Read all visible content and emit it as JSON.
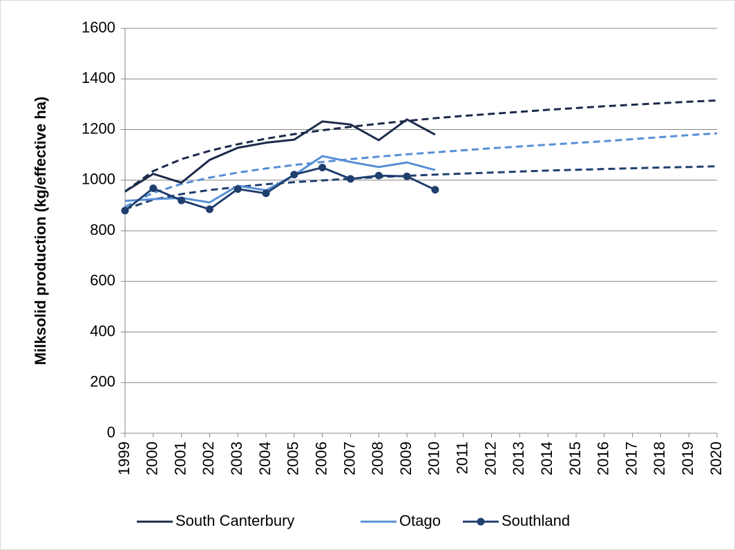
{
  "chart_data": {
    "type": "line",
    "y_label": "Milksolid production (kg/effective ha)",
    "categories": [
      "1999",
      "2000",
      "2001",
      "2002",
      "2003",
      "2004",
      "2005",
      "2006",
      "2007",
      "2008",
      "2009",
      "2010",
      "2011",
      "2012",
      "2013",
      "2014",
      "2015",
      "2016",
      "2017",
      "2018",
      "2019",
      "2020"
    ],
    "ylim": [
      0,
      1600
    ],
    "yticks": [
      0,
      200,
      400,
      600,
      800,
      1000,
      1200,
      1400,
      1600
    ],
    "grid": true,
    "legend": "bottom",
    "series": [
      {
        "name": "South Canterbury",
        "color": "#1b2a4a",
        "marker": false,
        "values": [
          955,
          1025,
          990,
          1080,
          1128,
          1148,
          1160,
          1232,
          1220,
          1158,
          1240,
          1180,
          null,
          null,
          null,
          null,
          null,
          null,
          null,
          null,
          null,
          null
        ],
        "trend": [
          955,
          1036,
          1083,
          1116,
          1142,
          1164,
          1182,
          1197,
          1211,
          1223,
          1234,
          1245,
          1254,
          1262,
          1270,
          1278,
          1285,
          1292,
          1298,
          1304,
          1310,
          1315
        ]
      },
      {
        "name": "Otago",
        "color": "#558ed5",
        "marker": false,
        "values": [
          918,
          925,
          930,
          912,
          978,
          960,
          1020,
          1095,
          1072,
          1052,
          1070,
          1040,
          null,
          null,
          null,
          null,
          null,
          null,
          null,
          null,
          null,
          null
        ],
        "trend": [
          895,
          950,
          985,
          1010,
          1030,
          1046,
          1060,
          1072,
          1083,
          1093,
          1102,
          1110,
          1118,
          1126,
          1133,
          1140,
          1147,
          1154,
          1162,
          1170,
          1178,
          1185
        ]
      },
      {
        "name": "Southland",
        "color": "#1f3f6e",
        "marker": true,
        "values": [
          880,
          968,
          920,
          885,
          965,
          948,
          1022,
          1050,
          1005,
          1018,
          1015,
          962,
          null,
          null,
          null,
          null,
          null,
          null,
          null,
          null,
          null,
          null
        ],
        "trend": [
          885,
          923,
          945,
          961,
          973,
          984,
          992,
          999,
          1006,
          1012,
          1017,
          1022,
          1026,
          1030,
          1034,
          1038,
          1041,
          1044,
          1047,
          1050,
          1052,
          1055
        ]
      }
    ]
  }
}
